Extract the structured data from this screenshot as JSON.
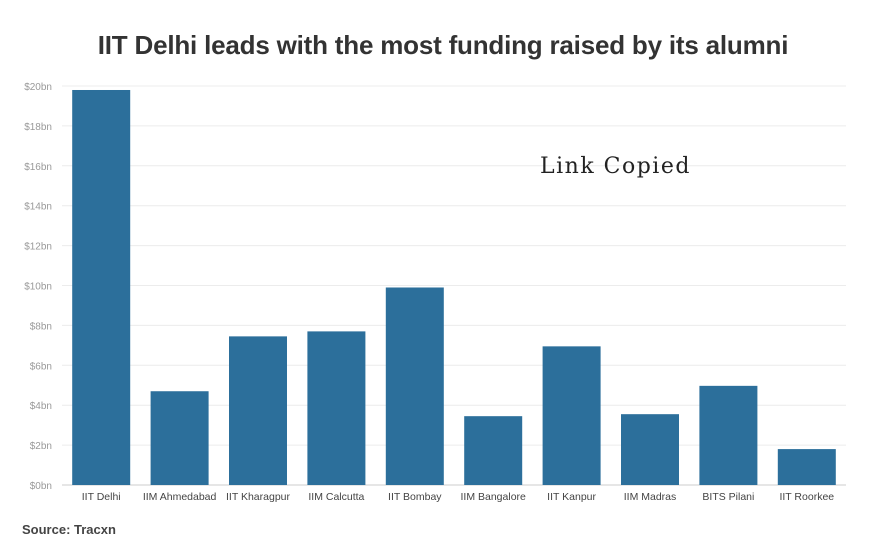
{
  "chart_data": {
    "type": "bar",
    "title": "IIT Delhi leads with the most funding raised by its alumni",
    "categories": [
      "IIT Delhi",
      "IIM Ahmedabad",
      "IIT Kharagpur",
      "IIM Calcutta",
      "IIT Bombay",
      "IIM Bangalore",
      "IIT Kanpur",
      "IIM Madras",
      "BITS Pilani",
      "IIT Roorkee"
    ],
    "values": [
      19.8,
      4.7,
      7.45,
      7.7,
      9.9,
      3.45,
      6.95,
      3.55,
      4.97,
      1.8
    ],
    "ylim": [
      0,
      20
    ],
    "yticks": [
      "$0bn",
      "$2bn",
      "$4bn",
      "$6bn",
      "$8bn",
      "$10bn",
      "$12bn",
      "$14bn",
      "$16bn",
      "$18bn",
      "$20bn"
    ],
    "grid": true,
    "bar_color": "#2c6f9b",
    "source": "Source: Tracxn"
  },
  "overlay_text": "Link Copied"
}
